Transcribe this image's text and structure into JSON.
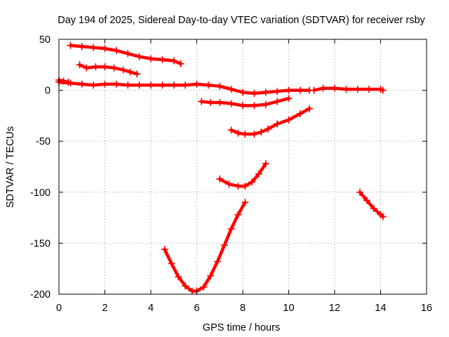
{
  "chart_data": {
    "type": "scatter",
    "title": "Day 194 of 2025, Sidereal Day-to-day VTEC variation (SDTVAR) for receiver rsby",
    "xlabel": "GPS time / hours",
    "ylabel": "SDTVAR / TECUs",
    "xlim": [
      0,
      16
    ],
    "ylim": [
      -200,
      50
    ],
    "xticks": [
      0,
      2,
      4,
      6,
      8,
      10,
      12,
      14,
      16
    ],
    "yticks": [
      -200,
      -150,
      -100,
      -50,
      0,
      50
    ],
    "grid": true,
    "marker": "+",
    "color": "#ff0000",
    "series": [
      {
        "x": [
          0.5,
          1.0,
          1.5,
          2.0,
          2.5,
          3.0,
          3.5,
          4.0,
          4.5,
          5.0,
          5.3
        ],
        "y": [
          44,
          43,
          42,
          41,
          39,
          36,
          33,
          31,
          30,
          29,
          26
        ]
      },
      {
        "x": [
          0.9,
          1.2,
          1.6,
          2.0,
          2.4,
          2.8,
          3.1,
          3.4
        ],
        "y": [
          25,
          22,
          23,
          23,
          22,
          20,
          18,
          16
        ]
      },
      {
        "x": [
          0.0,
          0.5,
          1.0,
          1.5,
          2.0,
          2.5,
          3.0,
          3.5,
          4.0,
          4.5,
          5.0,
          5.5,
          6.0,
          6.5,
          7.0,
          7.5,
          8.0,
          8.5,
          9.0,
          9.5,
          10.0,
          10.5,
          10.9
        ],
        "y": [
          8,
          7,
          6,
          5,
          6,
          6,
          5,
          5,
          5,
          5,
          5,
          5,
          6,
          5,
          4,
          1,
          -2,
          -3,
          -2,
          -1,
          0,
          0,
          0
        ]
      },
      {
        "x": [
          0.0,
          0.2,
          0.4
        ],
        "y": [
          10,
          9,
          8
        ]
      },
      {
        "x": [
          11.1,
          11.5,
          12.0,
          12.5,
          13.0,
          13.5,
          14.0,
          14.1
        ],
        "y": [
          0,
          2,
          2,
          1,
          1,
          1,
          1,
          0
        ]
      },
      {
        "x": [
          6.2,
          6.6,
          7.0,
          7.5,
          8.0,
          8.5,
          9.0,
          9.5,
          10.0
        ],
        "y": [
          -11,
          -12,
          -12,
          -13,
          -15,
          -15,
          -14,
          -11,
          -8
        ]
      },
      {
        "x": [
          7.5,
          7.8,
          8.1,
          8.5,
          8.8,
          9.1,
          9.5,
          10.0,
          10.5,
          10.9
        ],
        "y": [
          -39,
          -42,
          -43,
          -43,
          -41,
          -38,
          -33,
          -29,
          -23,
          -18
        ]
      },
      {
        "x": [
          7.0,
          7.4,
          7.8,
          8.1,
          8.4,
          8.7,
          9.0
        ],
        "y": [
          -87,
          -92,
          -94,
          -94,
          -90,
          -82,
          -72
        ]
      },
      {
        "x": [
          4.6,
          4.9,
          5.2,
          5.5,
          5.8,
          6.0,
          6.3,
          6.6,
          6.9,
          7.2,
          7.5,
          7.8,
          8.1
        ],
        "y": [
          -156,
          -170,
          -183,
          -192,
          -197,
          -197,
          -193,
          -182,
          -168,
          -152,
          -136,
          -122,
          -110
        ]
      },
      {
        "x": [
          13.1,
          13.4,
          13.7,
          14.0,
          14.1
        ],
        "y": [
          -100,
          -108,
          -116,
          -122,
          -124
        ]
      }
    ]
  }
}
